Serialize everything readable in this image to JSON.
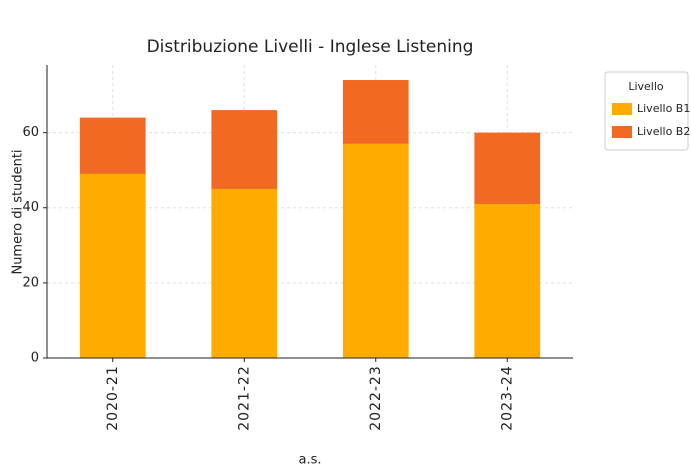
{
  "chart_data": {
    "type": "stacked_bar",
    "title": "Distribuzione Livelli - Inglese Listening",
    "x_label": "a.s.",
    "y_label": "Numero di studenti",
    "categories": [
      "2020-21",
      "2021-22",
      "2022-23",
      "2023-24"
    ],
    "series": [
      {
        "name": "Livello B1",
        "color": "#ffab00",
        "values": [
          49,
          45,
          57,
          41
        ]
      },
      {
        "name": "Livello B2",
        "color": "#f26a21",
        "values": [
          15,
          21,
          17,
          19
        ]
      }
    ],
    "legend_title": "Livello",
    "legend": "outside right",
    "ylim": [
      0,
      78
    ],
    "yticks": [
      0,
      20,
      40,
      60
    ],
    "grid": true
  }
}
